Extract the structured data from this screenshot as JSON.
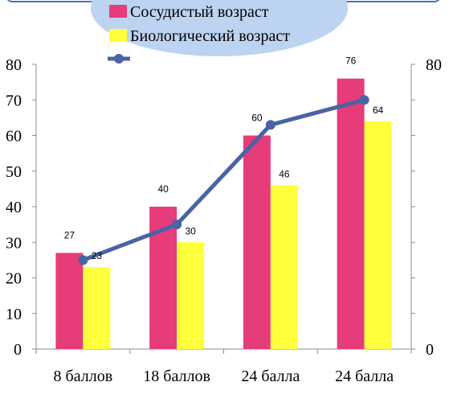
{
  "chart_data": {
    "type": "bar",
    "title": "",
    "xlabel": "",
    "ylabel": "",
    "categories": [
      "8 баллов",
      "18 баллов",
      "24 балла",
      "24 балла"
    ],
    "series": [
      {
        "name": "Сосудистый возраст",
        "type": "bar",
        "values": [
          27,
          40,
          60,
          76
        ]
      },
      {
        "name": "Биологический возраст",
        "type": "bar",
        "values": [
          23,
          30,
          46,
          64
        ]
      },
      {
        "name": "",
        "type": "line",
        "values": [
          25,
          35,
          63,
          70
        ]
      }
    ],
    "ylim": [
      0,
      80
    ],
    "yticks": [
      0,
      10,
      20,
      30,
      40,
      50,
      60,
      70,
      80
    ],
    "y2_ticks": [
      "0",
      "80"
    ],
    "legend_position": "top",
    "colors": {
      "series_1": "#e63c7a",
      "series_2": "#ffff3c",
      "line": "#4a63a4",
      "axis": "#8c8c8c",
      "legend_bg": "#bcd3f2",
      "legend_border": "#4a72c4"
    }
  }
}
